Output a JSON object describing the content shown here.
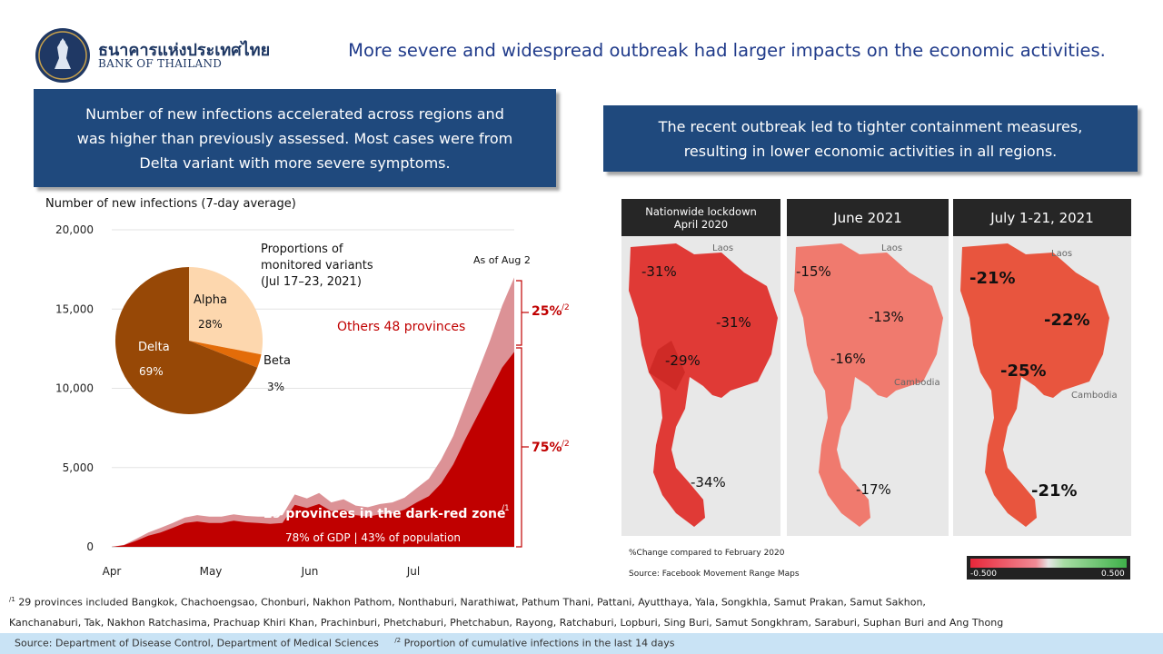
{
  "header": {
    "logo_thai": "ธนาคารแห่งประเทศไทย",
    "logo_en": "BANK OF THAILAND",
    "title": "More severe and widespread outbreak had larger impacts on the economic activities."
  },
  "left_callout": {
    "line1": "Number of new infections accelerated across regions and",
    "line2": "was higher than previously assessed. Most cases were from",
    "line3": "Delta variant with more severe symptoms."
  },
  "right_callout": {
    "line1": "The recent outbreak led to tighter containment measures,",
    "line2": "resulting in lower economic activities in all regions."
  },
  "chart_data": [
    {
      "type": "area",
      "title": "Number of new infections (7-day average)",
      "ylim": [
        0,
        20000
      ],
      "yticks": [
        "20,000",
        "15,000",
        "10,000",
        "5,000",
        "0"
      ],
      "xticks": [
        "Apr",
        "May",
        "Jun",
        "Jul"
      ],
      "series": [
        {
          "name": "29 provinces in the dark-red zone",
          "color": "#c00000",
          "values": [
            0,
            100,
            380,
            700,
            900,
            1200,
            1500,
            1600,
            1500,
            1500,
            1650,
            1550,
            1500,
            1450,
            1500,
            2650,
            2450,
            2700,
            2250,
            2350,
            2000,
            1900,
            2050,
            2100,
            2350,
            2800,
            3200,
            4000,
            5200,
            6800,
            8300,
            9800,
            11300,
            12300
          ]
        },
        {
          "name": "Others 48 provinces",
          "color": "#dc9296",
          "values": [
            0,
            120,
            500,
            900,
            1200,
            1500,
            1850,
            2000,
            1900,
            1900,
            2050,
            1950,
            1900,
            1900,
            2000,
            3300,
            3050,
            3400,
            2800,
            3000,
            2600,
            2500,
            2700,
            2800,
            3100,
            3700,
            4300,
            5500,
            7000,
            9000,
            11000,
            13000,
            15200,
            17000
          ]
        }
      ],
      "annotations": {
        "as_of": "As of Aug 2",
        "others_label": "Others 48 provinces",
        "others_pct": "25%",
        "others_sup": "/2",
        "zone_label": "29 provinces in the dark-red zone",
        "zone_sup": "/1",
        "zone_pct": "75%",
        "zone_sup2": "/2",
        "zone_detail": "78% of GDP | 43% of population"
      }
    },
    {
      "type": "pie",
      "title_lines": [
        "Proportions of",
        "monitored variants",
        "(Jul 17–23, 2021)"
      ],
      "slices": [
        {
          "label": "Alpha",
          "value": 28,
          "display": "28%",
          "color": "#fdd7ae"
        },
        {
          "label": "Beta",
          "value": 3,
          "display": "3%",
          "color": "#e36c09"
        },
        {
          "label": "Delta",
          "value": 69,
          "display": "69%",
          "color": "#974806"
        }
      ]
    }
  ],
  "maps": {
    "panels": [
      {
        "title_lines": [
          "Nationwide lockdown",
          "April 2020"
        ],
        "labels": [
          "-31%",
          "-31%",
          "-29%",
          "-34%"
        ]
      },
      {
        "title": "June 2021",
        "labels": [
          "-15%",
          "-13%",
          "-16%",
          "-17%"
        ]
      },
      {
        "title": "July 1-21, 2021",
        "labels": [
          "-21%",
          "-22%",
          "-25%",
          "-21%"
        ]
      }
    ],
    "place_names": [
      "Laos",
      "Cambodia"
    ],
    "note": "%Change compared to February 2020",
    "source": "Source: Facebook Movement Range Maps",
    "legend_min": "-0.500",
    "legend_max": "0.500"
  },
  "footnotes": {
    "fn1_sup": "/1",
    "fn1_line1": "29 provinces included Bangkok, Chachoengsao, Chonburi, Nakhon Pathom, Nonthaburi, Narathiwat, Pathum Thani, Pattani, Ayutthaya, Yala, Songkhla, Samut Prakan, Samut Sakhon,",
    "fn1_line2": "Kanchanaburi, Tak, Nakhon Ratchasima, Prachuap Khiri Khan, Prachinburi, Phetchaburi, Phetchabun, Rayong, Ratchaburi, Lopburi, Sing Buri, Samut Songkhram, Saraburi, Suphan Buri and Ang Thong",
    "source": "Source: Department of Disease Control, Department of Medical Sciences",
    "fn2_sup": "/2",
    "fn2": "Proportion of cumulative infections in the last 14 days"
  }
}
